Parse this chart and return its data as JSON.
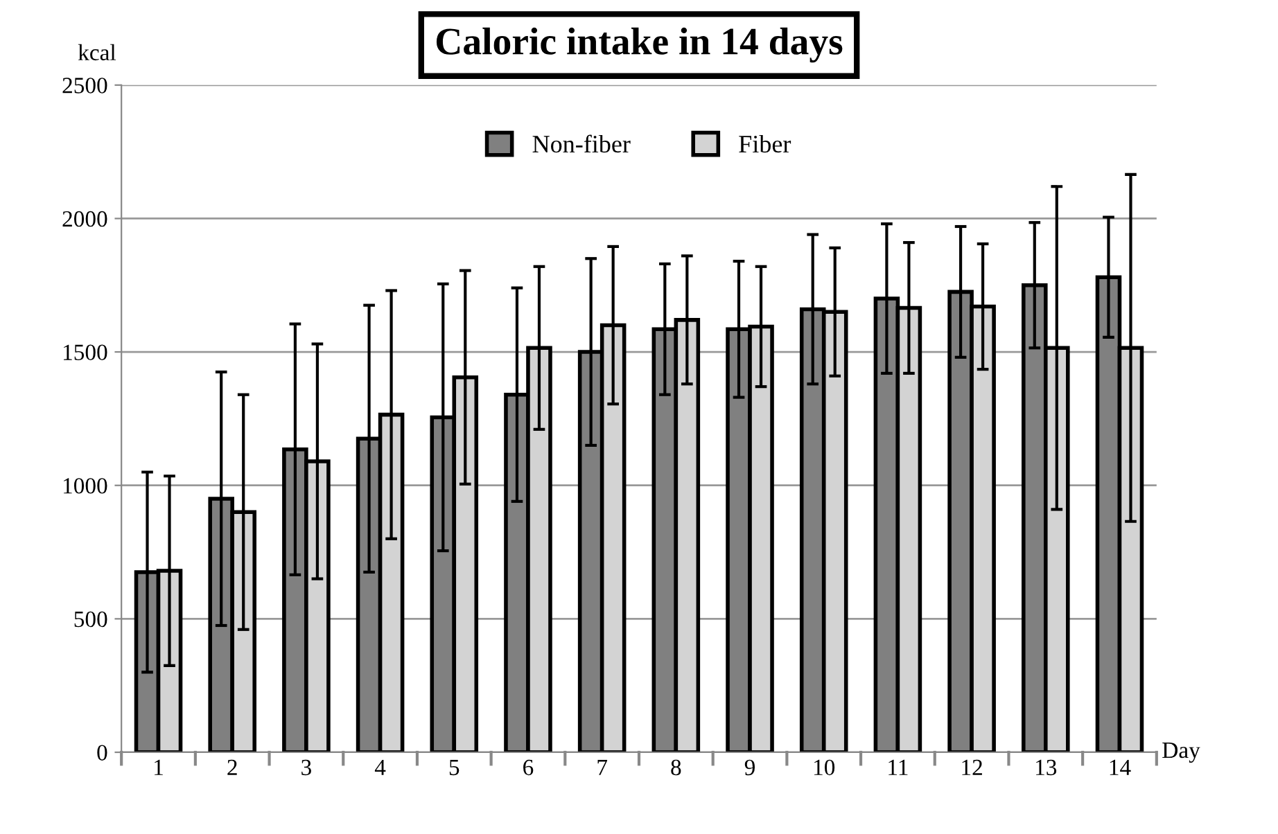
{
  "chart_data": {
    "type": "bar",
    "title": "Caloric intake in 14 days",
    "xlabel": "Day",
    "ylabel": "kcal",
    "categories": [
      "1",
      "2",
      "3",
      "4",
      "5",
      "6",
      "7",
      "8",
      "9",
      "10",
      "11",
      "12",
      "13",
      "14"
    ],
    "series": [
      {
        "name": "Non-fiber",
        "color": "#808080",
        "values": [
          675,
          950,
          1135,
          1175,
          1255,
          1340,
          1500,
          1585,
          1585,
          1660,
          1700,
          1725,
          1750,
          1780
        ],
        "errors": [
          375,
          475,
          470,
          500,
          500,
          400,
          350,
          245,
          255,
          280,
          280,
          245,
          235,
          225
        ]
      },
      {
        "name": "Fiber",
        "color": "#d3d3d3",
        "values": [
          680,
          900,
          1090,
          1265,
          1405,
          1515,
          1600,
          1620,
          1595,
          1650,
          1665,
          1670,
          1515,
          1515
        ],
        "errors": [
          355,
          440,
          440,
          465,
          400,
          305,
          295,
          240,
          225,
          240,
          245,
          235,
          605,
          650
        ]
      }
    ],
    "ylim": [
      0,
      2500
    ],
    "yticks": [
      0,
      500,
      1000,
      1500,
      2000,
      2500
    ],
    "grid": "y",
    "legend": "top"
  }
}
